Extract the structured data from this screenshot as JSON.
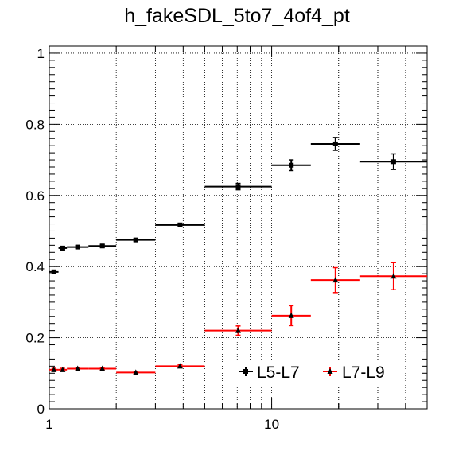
{
  "chart_data": {
    "type": "scatter",
    "title": "h_fakeSDL_5to7_4of4_pt",
    "xlabel": "",
    "ylabel": "",
    "xscale": "log",
    "xlim": [
      1,
      50
    ],
    "ylim": [
      0,
      1.02
    ],
    "grid": true,
    "x_tick_labels": [
      {
        "value": 1,
        "label": "1"
      },
      {
        "value": 10,
        "label": "10"
      }
    ],
    "y_tick_labels": [
      {
        "value": 0,
        "label": "0"
      },
      {
        "value": 0.2,
        "label": "0.2"
      },
      {
        "value": 0.4,
        "label": "0.4"
      },
      {
        "value": 0.6,
        "label": "0.6"
      },
      {
        "value": 0.8,
        "label": "0.8"
      },
      {
        "value": 1,
        "label": "1"
      }
    ],
    "legend": {
      "placement": "bottom-right"
    },
    "series": [
      {
        "name": "L5-L7",
        "color": "#000000",
        "marker": "square",
        "points": [
          {
            "xlo": 1.0,
            "xhi": 1.1,
            "y": 0.385,
            "yerr": 0.005
          },
          {
            "xlo": 1.1,
            "xhi": 1.2,
            "y": 0.452,
            "yerr": 0.005
          },
          {
            "xlo": 1.2,
            "xhi": 1.5,
            "y": 0.455,
            "yerr": 0.004
          },
          {
            "xlo": 1.5,
            "xhi": 2.0,
            "y": 0.458,
            "yerr": 0.004
          },
          {
            "xlo": 2.0,
            "xhi": 3.0,
            "y": 0.475,
            "yerr": 0.004
          },
          {
            "xlo": 3.0,
            "xhi": 5.0,
            "y": 0.517,
            "yerr": 0.005
          },
          {
            "xlo": 5.0,
            "xhi": 10.0,
            "y": 0.625,
            "yerr": 0.009
          },
          {
            "xlo": 10.0,
            "xhi": 15.0,
            "y": 0.685,
            "yerr": 0.015
          },
          {
            "xlo": 15.0,
            "xhi": 25.0,
            "y": 0.745,
            "yerr": 0.018
          },
          {
            "xlo": 25.0,
            "xhi": 50.0,
            "y": 0.695,
            "yerr": 0.022
          }
        ]
      },
      {
        "name": "L7-L9",
        "color": "#ff0000",
        "marker": "triangle",
        "points": [
          {
            "xlo": 1.0,
            "xhi": 1.1,
            "y": 0.11,
            "yerr": 0.004
          },
          {
            "xlo": 1.1,
            "xhi": 1.2,
            "y": 0.11,
            "yerr": 0.004
          },
          {
            "xlo": 1.2,
            "xhi": 1.5,
            "y": 0.113,
            "yerr": 0.003
          },
          {
            "xlo": 1.5,
            "xhi": 2.0,
            "y": 0.113,
            "yerr": 0.003
          },
          {
            "xlo": 2.0,
            "xhi": 3.0,
            "y": 0.102,
            "yerr": 0.003
          },
          {
            "xlo": 3.0,
            "xhi": 5.0,
            "y": 0.12,
            "yerr": 0.004
          },
          {
            "xlo": 5.0,
            "xhi": 10.0,
            "y": 0.22,
            "yerr": 0.013
          },
          {
            "xlo": 10.0,
            "xhi": 15.0,
            "y": 0.262,
            "yerr": 0.028
          },
          {
            "xlo": 15.0,
            "xhi": 25.0,
            "y": 0.362,
            "yerr": 0.035
          },
          {
            "xlo": 25.0,
            "xhi": 50.0,
            "y": 0.373,
            "yerr": 0.038
          }
        ]
      }
    ]
  }
}
